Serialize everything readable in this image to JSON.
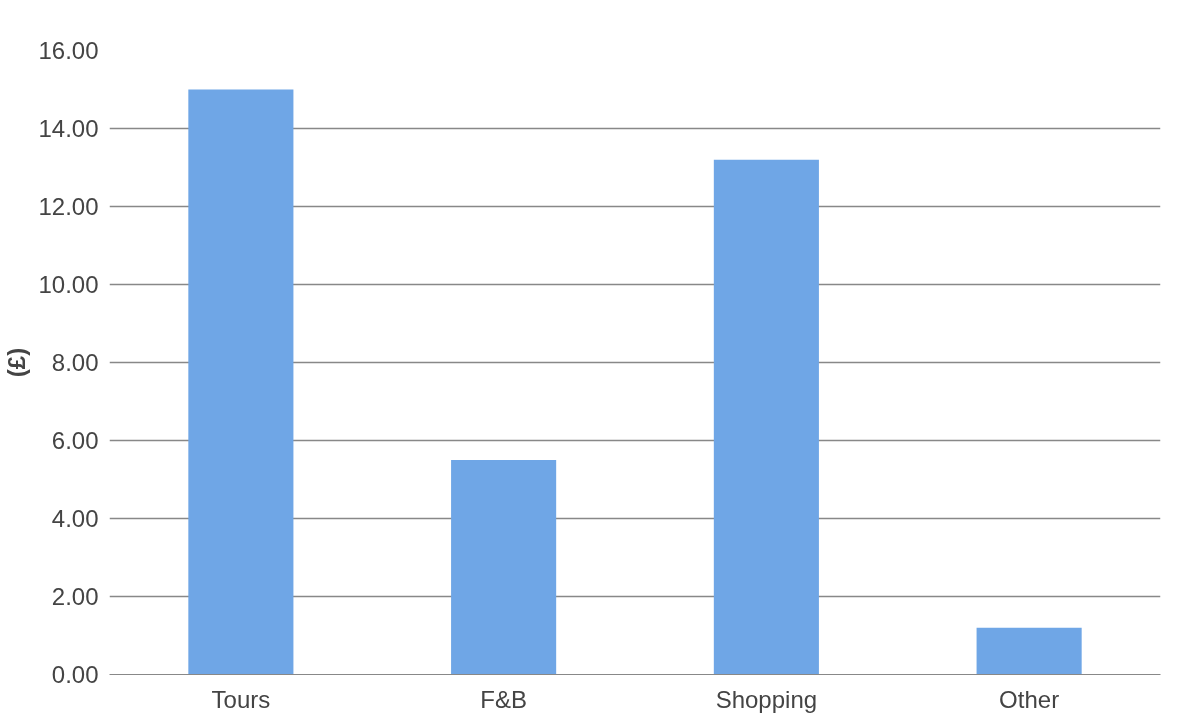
{
  "chart_data": {
    "type": "bar",
    "ylabel": "(£)",
    "categories": [
      "Tours",
      "F&B",
      "Shopping",
      "Other"
    ],
    "values": [
      15.0,
      5.5,
      13.2,
      1.2
    ],
    "color": "#6fa6e6",
    "ylim": [
      0,
      16
    ],
    "yticks": [
      {
        "value": 0,
        "label": "0.00"
      },
      {
        "value": 2,
        "label": "2.00"
      },
      {
        "value": 4,
        "label": "4.00"
      },
      {
        "value": 6,
        "label": "6.00"
      },
      {
        "value": 8,
        "label": "8.00"
      },
      {
        "value": 10,
        "label": "10.00"
      },
      {
        "value": 12,
        "label": "12.00"
      },
      {
        "value": 14,
        "label": "14.00"
      },
      {
        "value": 16,
        "label": "16.00"
      }
    ],
    "grid": "y"
  }
}
